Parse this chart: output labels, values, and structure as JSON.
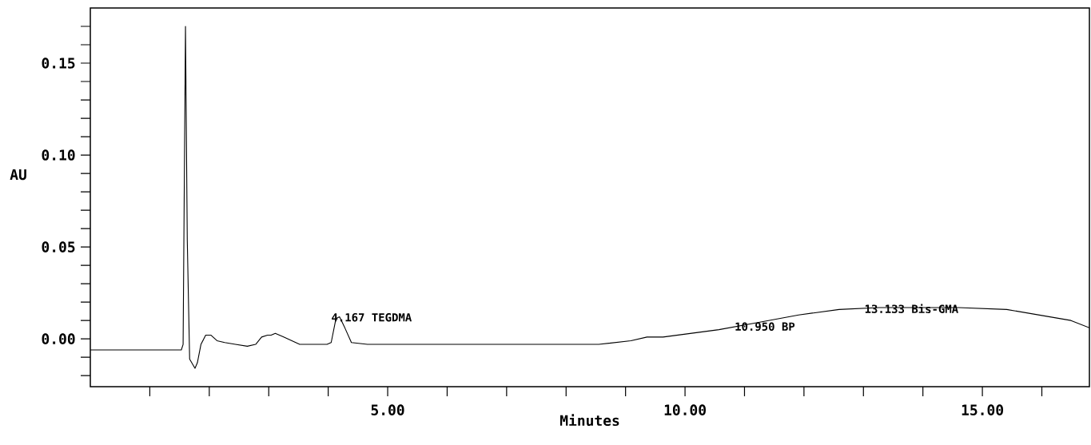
{
  "chart_data": {
    "type": "line",
    "xlabel": "Minutes",
    "ylabel": "AU",
    "x": [
      0,
      1.16,
      1.53,
      1.56,
      1.6,
      1.63,
      1.67,
      1.76,
      1.8,
      1.86,
      1.94,
      2.03,
      2.13,
      2.26,
      2.44,
      2.64,
      2.78,
      2.88,
      2.98,
      3.04,
      3.11,
      3.25,
      3.52,
      3.98,
      4.05,
      4.13,
      4.19,
      4.28,
      4.39,
      4.66,
      6.54,
      8.55,
      9.09,
      9.36,
      9.63,
      10.57,
      11.24,
      11.91,
      12.59,
      13.26,
      14.6,
      15.41,
      15.95,
      16.49,
      16.8
    ],
    "series": [
      {
        "color": "#000000",
        "values": [
          -0.006,
          -0.006,
          -0.006,
          -0.003,
          0.17,
          0.054,
          -0.011,
          -0.016,
          -0.013,
          -0.003,
          0.002,
          0.002,
          -0.001,
          -0.002,
          -0.003,
          -0.004,
          -0.003,
          0.001,
          0.002,
          0.002,
          0.003,
          0.001,
          -0.003,
          -0.003,
          -0.002,
          0.011,
          0.012,
          0.006,
          -0.002,
          -0.003,
          -0.003,
          -0.003,
          -0.001,
          0.001,
          0.001,
          0.005,
          0.009,
          0.013,
          0.016,
          0.017,
          0.017,
          0.016,
          0.013,
          0.01,
          0.006
        ]
      }
    ],
    "xlim": [
      0,
      16.8
    ],
    "ylim": [
      -0.026,
      0.18
    ],
    "xticks": [
      {
        "value": 1,
        "label": null
      },
      {
        "value": 2,
        "label": null
      },
      {
        "value": 3,
        "label": null
      },
      {
        "value": 4,
        "label": null
      },
      {
        "value": 5,
        "label": "5.00"
      },
      {
        "value": 6,
        "label": null
      },
      {
        "value": 7,
        "label": null
      },
      {
        "value": 8,
        "label": null
      },
      {
        "value": 9,
        "label": null
      },
      {
        "value": 10,
        "label": "10.00"
      },
      {
        "value": 11,
        "label": null
      },
      {
        "value": 12,
        "label": null
      },
      {
        "value": 13,
        "label": null
      },
      {
        "value": 14,
        "label": null
      },
      {
        "value": 15,
        "label": "15.00"
      },
      {
        "value": 16,
        "label": null
      }
    ],
    "yticks": [
      {
        "value": -0.02,
        "label": null
      },
      {
        "value": -0.01,
        "label": null
      },
      {
        "value": 0,
        "label": "0.00"
      },
      {
        "value": 0.01,
        "label": null
      },
      {
        "value": 0.02,
        "label": null
      },
      {
        "value": 0.03,
        "label": null
      },
      {
        "value": 0.04,
        "label": null
      },
      {
        "value": 0.05,
        "label": "0.05"
      },
      {
        "value": 0.06,
        "label": null
      },
      {
        "value": 0.07,
        "label": null
      },
      {
        "value": 0.08,
        "label": null
      },
      {
        "value": 0.09,
        "label": null
      },
      {
        "value": 0.1,
        "label": "0.10"
      },
      {
        "value": 0.11,
        "label": null
      },
      {
        "value": 0.12,
        "label": null
      },
      {
        "value": 0.13,
        "label": null
      },
      {
        "value": 0.14,
        "label": null
      },
      {
        "value": 0.15,
        "label": "0.15"
      },
      {
        "value": 0.16,
        "label": null
      },
      {
        "value": 0.17,
        "label": null
      }
    ],
    "annotations": [
      {
        "text": "4.167 TEGDMA",
        "x": 4.167,
        "y": 0.012
      },
      {
        "text": "10.950 BP",
        "x": 10.95,
        "y": 0.007
      },
      {
        "text": "13.133 Bis-GMA",
        "x": 13.133,
        "y": 0.017
      }
    ],
    "grid": false,
    "marker": "none",
    "line_style": "solid"
  }
}
